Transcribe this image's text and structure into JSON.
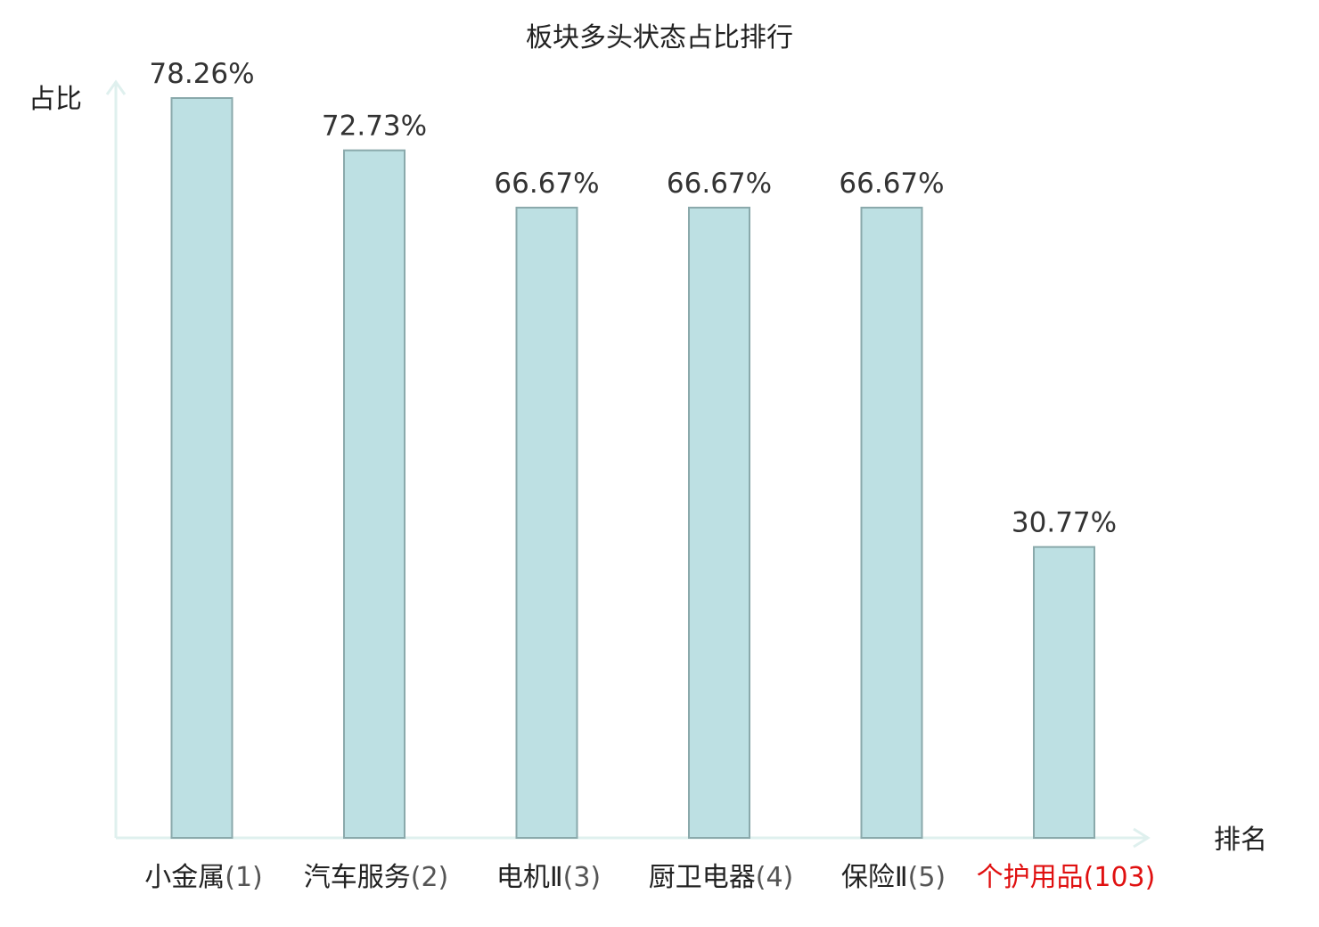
{
  "chart_data": {
    "type": "bar",
    "title": "板块多头状态占比排行",
    "ylabel": "占比",
    "xlabel": "排名",
    "categories": [
      {
        "name": "小金属",
        "rank": "(1)",
        "highlight": false
      },
      {
        "name": "汽车服务",
        "rank": "(2)",
        "highlight": false
      },
      {
        "name": "电机Ⅱ",
        "rank": "(3)",
        "highlight": false
      },
      {
        "name": "厨卫电器",
        "rank": "(4)",
        "highlight": false
      },
      {
        "name": "保险Ⅱ",
        "rank": "(5)",
        "highlight": false
      },
      {
        "name": "个护用品",
        "rank": "(103)",
        "highlight": true
      }
    ],
    "values": [
      78.26,
      72.73,
      66.67,
      66.67,
      66.67,
      30.77
    ],
    "value_labels": [
      "78.26%",
      "72.73%",
      "66.67%",
      "66.67%",
      "66.67%",
      "30.77%"
    ],
    "ylim": [
      0,
      80
    ],
    "grid": false,
    "colors": {
      "bar_fill": "#bde0e3",
      "bar_stroke": "#8aa9ab",
      "axis": "#dff0ee",
      "label_text": "#222222",
      "highlight_text": "#e01010",
      "rank_text": "#555555"
    }
  }
}
